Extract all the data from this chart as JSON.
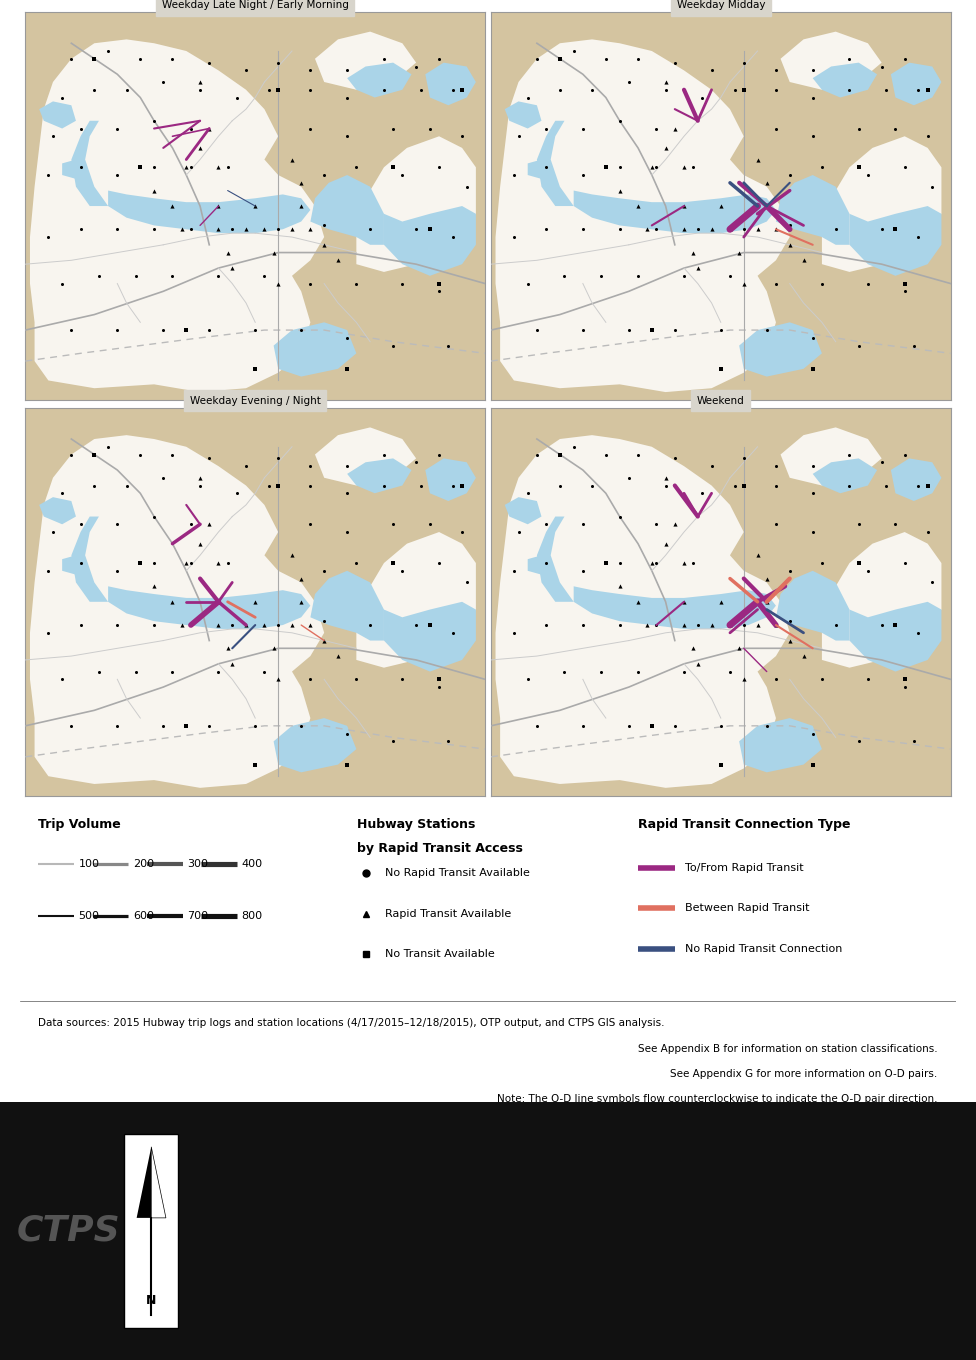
{
  "panel_titles": [
    "Weekday Late Night / Early Morning",
    "Weekday Midday",
    "Weekday Evening / Night",
    "Weekend"
  ],
  "bg_color": "#d4c4a0",
  "water_color": "#aad4e8",
  "land_color": "#f8f5ef",
  "road_color_major": "#aaaaaa",
  "road_color_dashed": "#bbbbbb",
  "road_color_minor": "#cccccc",
  "panel_title_bg": "#d8d5cc",
  "figure_bg": "#ffffff",
  "border_color": "#999999",
  "to_from_rapid_color": "#9b2882",
  "between_rapid_color": "#e07060",
  "no_rapid_color": "#3a5080",
  "source_text_line1": "Data sources: 2015 Hubway trip logs and station locations (4/17/2015–12/18/2015), OTP output, and CTPS GIS analysis.",
  "source_text_line2": "See Appendix B for information on station classifications.",
  "source_text_line3": "See Appendix G for more information on O-D pairs.",
  "source_text_line4": "Note: The O-D line symbols flow counterclockwise to indicate the O-D pair direction.",
  "bottom_bg": "#111111",
  "ctps_color": "#555555",
  "figure_width": 9.76,
  "figure_height": 13.6
}
